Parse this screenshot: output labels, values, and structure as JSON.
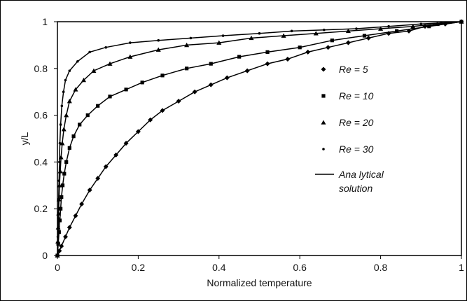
{
  "chart_data": {
    "type": "line",
    "xlabel": "Normalized temperature",
    "ylabel": "y/L",
    "xlim": [
      0,
      1
    ],
    "ylim": [
      0,
      1
    ],
    "xticks": [
      "0",
      "0.2",
      "0.4",
      "0.6",
      "0.8",
      "1"
    ],
    "yticks": [
      "0",
      "0.2",
      "0.4",
      "0.6",
      "0.8",
      "1"
    ],
    "legend_position": "right",
    "series": [
      {
        "name": "Re = 5",
        "marker": "diamond",
        "x": [
          0.0,
          0.005,
          0.01,
          0.02,
          0.03,
          0.045,
          0.06,
          0.08,
          0.1,
          0.12,
          0.145,
          0.17,
          0.2,
          0.23,
          0.26,
          0.3,
          0.34,
          0.38,
          0.42,
          0.47,
          0.52,
          0.57,
          0.62,
          0.67,
          0.72,
          0.77,
          0.82,
          0.87,
          0.91,
          0.96,
          1.0
        ],
        "y": [
          0.0,
          0.02,
          0.04,
          0.08,
          0.12,
          0.17,
          0.22,
          0.28,
          0.33,
          0.38,
          0.43,
          0.48,
          0.53,
          0.58,
          0.62,
          0.66,
          0.7,
          0.73,
          0.76,
          0.79,
          0.82,
          0.84,
          0.87,
          0.89,
          0.91,
          0.93,
          0.95,
          0.96,
          0.98,
          0.99,
          1.0
        ]
      },
      {
        "name": "Re = 10",
        "marker": "square",
        "x": [
          0.0,
          0.002,
          0.004,
          0.006,
          0.008,
          0.01,
          0.013,
          0.017,
          0.022,
          0.03,
          0.04,
          0.055,
          0.075,
          0.1,
          0.13,
          0.17,
          0.21,
          0.26,
          0.32,
          0.38,
          0.45,
          0.52,
          0.6,
          0.68,
          0.76,
          0.84,
          0.92,
          1.0
        ],
        "y": [
          0.0,
          0.05,
          0.1,
          0.15,
          0.2,
          0.25,
          0.3,
          0.35,
          0.4,
          0.46,
          0.51,
          0.56,
          0.6,
          0.64,
          0.68,
          0.71,
          0.74,
          0.77,
          0.8,
          0.82,
          0.85,
          0.87,
          0.89,
          0.92,
          0.94,
          0.96,
          0.98,
          1.0
        ]
      },
      {
        "name": "Re = 20",
        "marker": "triangle",
        "x": [
          0.0,
          0.001,
          0.002,
          0.003,
          0.004,
          0.005,
          0.007,
          0.009,
          0.012,
          0.016,
          0.022,
          0.03,
          0.045,
          0.065,
          0.09,
          0.13,
          0.18,
          0.25,
          0.32,
          0.4,
          0.48,
          0.56,
          0.64,
          0.72,
          0.8,
          0.88,
          0.94,
          1.0
        ],
        "y": [
          0.0,
          0.06,
          0.12,
          0.18,
          0.24,
          0.3,
          0.36,
          0.42,
          0.48,
          0.54,
          0.6,
          0.66,
          0.71,
          0.75,
          0.79,
          0.82,
          0.85,
          0.88,
          0.9,
          0.91,
          0.93,
          0.94,
          0.95,
          0.96,
          0.97,
          0.98,
          0.99,
          1.0
        ]
      },
      {
        "name": "Re = 30",
        "marker": "dot",
        "x": [
          0.0,
          0.001,
          0.002,
          0.003,
          0.004,
          0.005,
          0.006,
          0.008,
          0.011,
          0.015,
          0.02,
          0.03,
          0.05,
          0.08,
          0.12,
          0.18,
          0.25,
          0.33,
          0.41,
          0.5,
          0.58,
          0.66,
          0.74,
          0.82,
          0.9,
          0.95,
          1.0
        ],
        "y": [
          0.0,
          0.08,
          0.16,
          0.24,
          0.32,
          0.4,
          0.48,
          0.56,
          0.64,
          0.7,
          0.75,
          0.79,
          0.83,
          0.87,
          0.89,
          0.91,
          0.92,
          0.93,
          0.94,
          0.95,
          0.96,
          0.965,
          0.97,
          0.98,
          0.99,
          0.995,
          1.0
        ]
      }
    ],
    "analytical": {
      "name": "Ana lytical solution",
      "marker": "line"
    }
  },
  "legend": {
    "items": [
      {
        "label": "Re = 5",
        "marker": "diamond"
      },
      {
        "label": "Re = 10",
        "marker": "square"
      },
      {
        "label": "Re = 20",
        "marker": "triangle"
      },
      {
        "label": "Re = 30",
        "marker": "dot"
      }
    ],
    "analytical_line1": "Ana lytical",
    "analytical_line2": "solution"
  }
}
